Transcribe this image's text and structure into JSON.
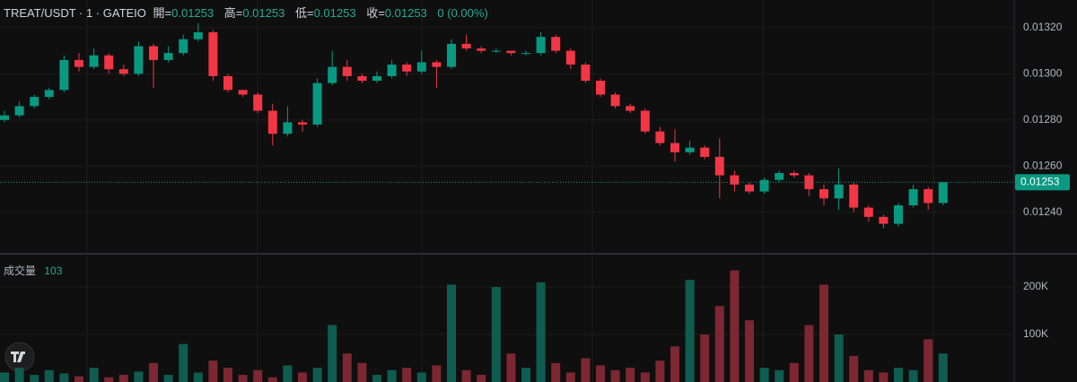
{
  "chart_data": {
    "type": "candlestick",
    "title": "TREAT/USDT · 1 · GATEIO",
    "ohlc_legend": [
      {
        "label": "開=",
        "value": "0.01253"
      },
      {
        "label": "高=",
        "value": "0.01253"
      },
      {
        "label": "低=",
        "value": "0.01253"
      },
      {
        "label": "收=",
        "value": "0.01253"
      }
    ],
    "change": "0 (0.00%)",
    "volume_title": "成交量",
    "volume_last": "103",
    "last_price": {
      "value": 0.01253,
      "label": "0.01253"
    },
    "up_color": "#089981",
    "down_color": "#f23645",
    "volume_up_color": "#0f5c50",
    "volume_down_color": "#7c2731",
    "ylim": [
      0.01222,
      0.01332
    ],
    "yticks": [
      {
        "value": 0.0124,
        "label": "0.01240"
      },
      {
        "value": 0.0126,
        "label": "0.01260"
      },
      {
        "value": 0.0128,
        "label": "0.01280"
      },
      {
        "value": 0.013,
        "label": "0.01300"
      },
      {
        "value": 0.0132,
        "label": "0.01320"
      }
    ],
    "volume_ylim": [
      0,
      270000
    ],
    "volume_yticks": [
      {
        "value": 100000,
        "label": "100K"
      },
      {
        "value": 200000,
        "label": "200K"
      }
    ],
    "open": [
      0.0128,
      0.01282,
      0.01286,
      0.0129,
      0.01293,
      0.01306,
      0.01303,
      0.01308,
      0.01302,
      0.013,
      0.01312,
      0.01306,
      0.01309,
      0.01315,
      0.01318,
      0.01299,
      0.01293,
      0.01291,
      0.01284,
      0.01274,
      0.01279,
      0.01278,
      0.01296,
      0.01303,
      0.01299,
      0.01297,
      0.01299,
      0.01304,
      0.01301,
      0.01305,
      0.01303,
      0.01313,
      0.01311,
      0.0131,
      0.0131,
      0.01309,
      0.01309,
      0.01316,
      0.0131,
      0.01304,
      0.01297,
      0.01291,
      0.01286,
      0.01284,
      0.01275,
      0.0127,
      0.01266,
      0.01268,
      0.01264,
      0.01256,
      0.01252,
      0.01249,
      0.01254,
      0.01257,
      0.01256,
      0.0125,
      0.01246,
      0.01252,
      0.01242,
      0.01238,
      0.01235,
      0.01243,
      0.0125,
      0.01244
    ],
    "high": [
      0.01284,
      0.01288,
      0.01291,
      0.01294,
      0.01308,
      0.01309,
      0.01311,
      0.01309,
      0.01304,
      0.01314,
      0.01313,
      0.01312,
      0.01317,
      0.01322,
      0.01319,
      0.013,
      0.01293,
      0.01292,
      0.01287,
      0.01286,
      0.0128,
      0.01298,
      0.0131,
      0.01306,
      0.013,
      0.01301,
      0.01306,
      0.01305,
      0.0131,
      0.01306,
      0.01315,
      0.01317,
      0.01312,
      0.01311,
      0.0131,
      0.0131,
      0.01318,
      0.01317,
      0.01311,
      0.01305,
      0.01298,
      0.01292,
      0.01287,
      0.01285,
      0.01277,
      0.01276,
      0.01271,
      0.01269,
      0.01272,
      0.01258,
      0.01253,
      0.01255,
      0.01258,
      0.01258,
      0.01257,
      0.01252,
      0.01259,
      0.01253,
      0.01243,
      0.01239,
      0.01244,
      0.01252,
      0.01251,
      0.01253
    ],
    "low": [
      0.01279,
      0.01281,
      0.01285,
      0.01289,
      0.01292,
      0.01301,
      0.01302,
      0.013,
      0.01299,
      0.01299,
      0.01294,
      0.01305,
      0.01308,
      0.01314,
      0.01297,
      0.01292,
      0.0129,
      0.01283,
      0.01269,
      0.01273,
      0.01275,
      0.01277,
      0.01295,
      0.01297,
      0.01296,
      0.01296,
      0.01298,
      0.01299,
      0.013,
      0.01294,
      0.01302,
      0.0131,
      0.01309,
      0.01309,
      0.01308,
      0.01308,
      0.01308,
      0.01309,
      0.01302,
      0.01296,
      0.0129,
      0.01285,
      0.01283,
      0.01274,
      0.01269,
      0.01262,
      0.01265,
      0.01263,
      0.01246,
      0.01249,
      0.01248,
      0.01248,
      0.01253,
      0.01255,
      0.01247,
      0.01243,
      0.01241,
      0.0124,
      0.01236,
      0.01233,
      0.01234,
      0.01242,
      0.01241,
      0.01243
    ],
    "close": [
      0.01282,
      0.01286,
      0.0129,
      0.01293,
      0.01306,
      0.01303,
      0.01308,
      0.01302,
      0.013,
      0.01312,
      0.01306,
      0.01309,
      0.01315,
      0.01318,
      0.01299,
      0.01293,
      0.01291,
      0.01284,
      0.01274,
      0.01279,
      0.01278,
      0.01296,
      0.01303,
      0.01299,
      0.01297,
      0.01299,
      0.01304,
      0.01301,
      0.01305,
      0.01303,
      0.01313,
      0.01311,
      0.0131,
      0.0131,
      0.01309,
      0.01309,
      0.01316,
      0.0131,
      0.01304,
      0.01297,
      0.01291,
      0.01286,
      0.01284,
      0.01275,
      0.0127,
      0.01266,
      0.01268,
      0.01264,
      0.01256,
      0.01252,
      0.01249,
      0.01254,
      0.01257,
      0.01256,
      0.0125,
      0.01246,
      0.01252,
      0.01242,
      0.01238,
      0.01235,
      0.01243,
      0.0125,
      0.01244,
      0.01253
    ],
    "volume": [
      20000,
      30000,
      15000,
      25000,
      18000,
      12000,
      30000,
      10000,
      15000,
      22000,
      40000,
      15000,
      80000,
      20000,
      45000,
      30000,
      15000,
      25000,
      10000,
      35000,
      20000,
      30000,
      120000,
      60000,
      40000,
      15000,
      25000,
      30000,
      20000,
      35000,
      205000,
      25000,
      15000,
      200000,
      60000,
      30000,
      210000,
      40000,
      20000,
      50000,
      35000,
      25000,
      30000,
      20000,
      45000,
      75000,
      215000,
      100000,
      160000,
      235000,
      130000,
      30000,
      25000,
      40000,
      120000,
      205000,
      100000,
      55000,
      25000,
      20000,
      30000,
      25000,
      90000,
      60000
    ]
  }
}
